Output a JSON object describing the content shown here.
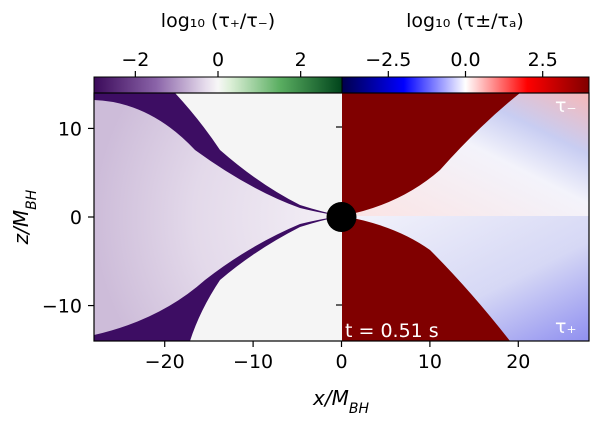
{
  "chart_data": {
    "type": "heatmap",
    "xlabel": "x/M_BH",
    "ylabel": "z/M_BH",
    "xlim": [
      -28,
      28
    ],
    "ylim": [
      -14,
      14
    ],
    "x_ticks": [
      "−20",
      "−10",
      "0",
      "10",
      "20"
    ],
    "x_tick_values": [
      -20,
      -10,
      0,
      10,
      20
    ],
    "y_ticks": [
      "10",
      "0",
      "−10"
    ],
    "y_tick_values": [
      10,
      0,
      -10
    ],
    "annotation_time": "t = 0.51 s",
    "label_tau_minus": "τ₋",
    "label_tau_plus": "τ₊",
    "left_panel": {
      "quantity": "log10(τ+/τ−)",
      "colorbar_title": "log₁₀ (τ₊/τ₋)",
      "colormap": "purple-white-green",
      "vlim": [
        -3,
        3
      ],
      "ticks": [
        "−2",
        "0",
        "2"
      ],
      "tick_values": [
        -2,
        0,
        2
      ]
    },
    "right_panel": {
      "quantity": "log10(τ±/τa)",
      "colorbar_title": "log₁₀ (τ±/τₐ)",
      "colormap": "seismic",
      "vlim": [
        -4,
        4
      ],
      "ticks": [
        "−2.5",
        "0.0",
        "2.5"
      ],
      "tick_values": [
        -2.5,
        0.0,
        2.5
      ]
    },
    "black_hole_marker": {
      "x": 0,
      "z": 0,
      "color": "#000000"
    },
    "colors": {
      "purple": "#3b0f6f",
      "green": "#00441b",
      "dark_red": "#800000",
      "blue": "#0000ff",
      "red": "#ff0000",
      "white": "#f7f7f7"
    }
  }
}
